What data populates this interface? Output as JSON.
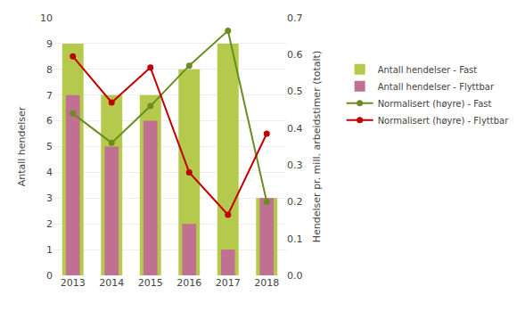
{
  "chart_data": {
    "type": "bar",
    "categories": [
      "2013",
      "2014",
      "2015",
      "2016",
      "2017",
      "2018"
    ],
    "series": [
      {
        "name": "Antall hendelser - Fast",
        "type": "bar",
        "color": "#b5c94c",
        "values": [
          9,
          7,
          7,
          8,
          9,
          3
        ]
      },
      {
        "name": "Antall hendelser - Flyttbar",
        "type": "bar",
        "color": "#c07090",
        "values": [
          7,
          5,
          6,
          2,
          1,
          3
        ]
      },
      {
        "name": "Normalisert (høyre) - Fast",
        "type": "line",
        "axis": "y2",
        "color": "#6b8c21",
        "marker": "circle",
        "values": [
          0.44,
          0.36,
          0.46,
          0.57,
          0.665,
          0.2
        ]
      },
      {
        "name": "Normalisert (høyre) - Flyttbar",
        "type": "line",
        "axis": "y2",
        "color": "#c00000",
        "marker": "circle",
        "values": [
          0.595,
          0.47,
          0.565,
          0.28,
          0.165,
          0.385
        ]
      }
    ],
    "ylabel": "Antall hendelser",
    "y2label": "Hendelser pr. mill. arbeidstimer (totalt)",
    "ylim": [
      0,
      10
    ],
    "yticks": [
      0,
      1,
      2,
      3,
      4,
      5,
      6,
      7,
      8,
      9,
      10
    ],
    "y2lim": [
      0.0,
      0.7
    ],
    "y2ticks": [
      {
        "value": 0.0,
        "label": "0.0"
      },
      0.1,
      0.2,
      0.3,
      0.4,
      0.5,
      0.6,
      0.7
    ],
    "grid": true,
    "legend": "right"
  }
}
